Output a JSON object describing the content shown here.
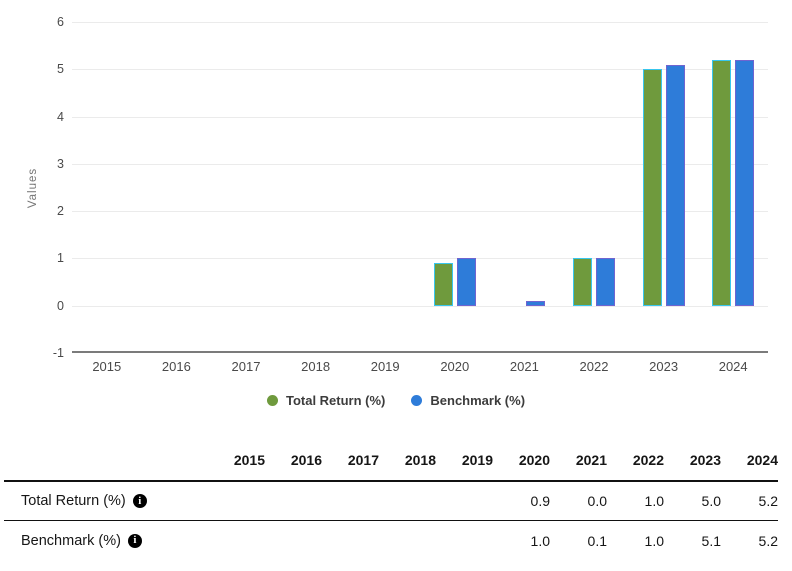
{
  "chart_data": {
    "type": "bar",
    "categories": [
      "2015",
      "2016",
      "2017",
      "2018",
      "2019",
      "2020",
      "2021",
      "2022",
      "2023",
      "2024"
    ],
    "series": [
      {
        "name": "Total Return (%)",
        "color": "#6f9a3d",
        "border_color": "#38c6ed",
        "values": [
          null,
          null,
          null,
          null,
          null,
          0.9,
          0.0,
          1.0,
          5.0,
          5.2
        ]
      },
      {
        "name": "Benchmark (%)",
        "color": "#2e7cd9",
        "border_color": "#7064d0",
        "values": [
          null,
          null,
          null,
          null,
          null,
          1.0,
          0.1,
          1.0,
          5.1,
          5.2
        ]
      }
    ],
    "title": "",
    "xlabel": "",
    "ylabel": "Values",
    "ylim": [
      -1,
      6
    ],
    "yticks": [
      6,
      5,
      4,
      3,
      2,
      1,
      0,
      -1
    ],
    "grid": true,
    "legend_position": "bottom"
  },
  "legend": {
    "items": [
      {
        "label": "Total Return (%)",
        "color": "#6f9a3d"
      },
      {
        "label": "Benchmark (%)",
        "color": "#2e7cd9"
      }
    ]
  },
  "table": {
    "columns": [
      "2015",
      "2016",
      "2017",
      "2018",
      "2019",
      "2020",
      "2021",
      "2022",
      "2023",
      "2024"
    ],
    "rows": [
      {
        "label": "Total Return (%)",
        "has_info_icon": true,
        "info_icon_glyph": "i",
        "values": [
          "",
          "",
          "",
          "",
          "",
          "0.9",
          "0.0",
          "1.0",
          "5.0",
          "5.2"
        ]
      },
      {
        "label": "Benchmark (%)",
        "has_info_icon": true,
        "info_icon_glyph": "i",
        "values": [
          "",
          "",
          "",
          "",
          "",
          "1.0",
          "0.1",
          "1.0",
          "5.1",
          "5.2"
        ]
      }
    ]
  }
}
